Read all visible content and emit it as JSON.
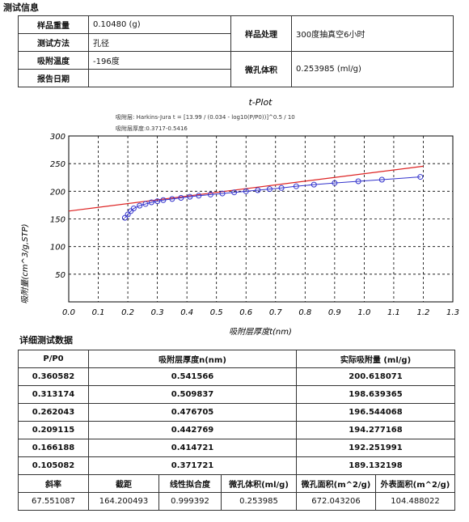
{
  "info": {
    "section_title": "测试信息",
    "rows": [
      {
        "label": "样品重量",
        "value": "0.10480 (g)"
      },
      {
        "label": "测试方法",
        "value": "孔径"
      },
      {
        "label": "吸附温度",
        "value": "-196度"
      },
      {
        "label": "报告日期",
        "value": ""
      }
    ],
    "right": [
      {
        "label": "样品处理",
        "value": "300度抽真空6小时"
      },
      {
        "label": "微孔体积",
        "value": "0.253985 (ml/g)"
      }
    ]
  },
  "chart_data": {
    "type": "scatter",
    "title": "t-Plot",
    "annotations": [
      "吸附层: Harkins-Jura t = [13.99 / (0.034 - log10(P/P0))]^0.5 / 10",
      "吸附层厚度:0.3717-0.5416"
    ],
    "xlabel": "吸附层厚度t(nm)",
    "ylabel": "吸附量(cm^3/g,STP)",
    "xlim": [
      0,
      1.3
    ],
    "ylim": [
      0,
      300
    ],
    "xticks": [
      "0.0",
      "0.1",
      "0.2",
      "0.3",
      "0.4",
      "0.5",
      "0.6",
      "0.7",
      "0.8",
      "0.9",
      "1.0",
      "1.1",
      "1.2",
      "1.3"
    ],
    "yticks": [
      "50",
      "100",
      "150",
      "200",
      "250",
      "300"
    ],
    "grid": true,
    "series": [
      {
        "color": "#3333cc",
        "x": [
          0.19,
          0.2,
          0.21,
          0.22,
          0.24,
          0.26,
          0.28,
          0.3,
          0.32,
          0.35,
          0.38,
          0.41,
          0.44,
          0.48,
          0.52,
          0.56,
          0.6,
          0.64,
          0.68,
          0.72,
          0.77,
          0.83,
          0.9,
          0.98,
          1.06,
          1.19
        ],
        "y": [
          152,
          158,
          164,
          169,
          174,
          177,
          180,
          182,
          184,
          186,
          188,
          190,
          192,
          194,
          196,
          198,
          200,
          202,
          204,
          206,
          209,
          212,
          215,
          218,
          221,
          226
        ]
      }
    ],
    "fit_line": {
      "color": "#dd2222",
      "x": [
        0,
        1.2
      ],
      "y": [
        164.200493,
        245.262
      ]
    }
  },
  "detail": {
    "section_title": "详细测试数据",
    "headers": [
      "P/P0",
      "吸附层厚度n(nm)",
      "实际吸附量 (ml/g)"
    ],
    "rows": [
      [
        "0.360582",
        "0.541566",
        "200.618071"
      ],
      [
        "0.313174",
        "0.509837",
        "198.639365"
      ],
      [
        "0.262043",
        "0.476705",
        "196.544068"
      ],
      [
        "0.209115",
        "0.442769",
        "194.277168"
      ],
      [
        "0.166188",
        "0.414721",
        "192.251991"
      ],
      [
        "0.105082",
        "0.371721",
        "189.132198"
      ]
    ],
    "summary_headers": [
      "斜率",
      "截距",
      "线性拟合度",
      "微孔体积(ml/g)",
      "微孔面积(m^2/g)",
      "外表面积(m^2/g)"
    ],
    "summary_values": [
      "67.551087",
      "164.200493",
      "0.999392",
      "0.253985",
      "672.043206",
      "104.488022"
    ]
  }
}
